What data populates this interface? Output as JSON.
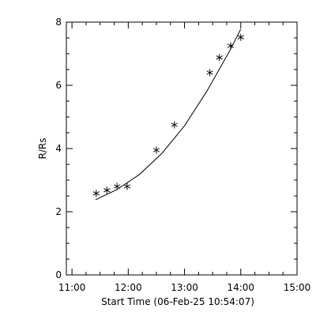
{
  "chart_data": {
    "type": "scatter",
    "xlabel": "Start Time (06-Feb-25 10:54:07)",
    "ylabel": "R/Rs",
    "x_ticks": [
      "11:00",
      "12:00",
      "13:00",
      "14:00",
      "15:00"
    ],
    "x_tick_hours": [
      11,
      12,
      13,
      14,
      15
    ],
    "y_ticks": [
      "0",
      "2",
      "4",
      "6",
      "8"
    ],
    "y_tick_values": [
      0,
      2,
      4,
      6,
      8
    ],
    "xlim_hours": [
      10.9,
      15.0
    ],
    "ylim": [
      0,
      8
    ],
    "grid": false,
    "marker": "asterisk",
    "points": [
      {
        "t": 11.43,
        "r": 2.58
      },
      {
        "t": 11.62,
        "r": 2.68
      },
      {
        "t": 11.8,
        "r": 2.8
      },
      {
        "t": 11.98,
        "r": 2.8
      },
      {
        "t": 12.5,
        "r": 3.95
      },
      {
        "t": 12.82,
        "r": 4.75
      },
      {
        "t": 13.45,
        "r": 6.4
      },
      {
        "t": 13.62,
        "r": 6.88
      },
      {
        "t": 13.82,
        "r": 7.25
      },
      {
        "t": 14.0,
        "r": 7.52
      }
    ],
    "fit_curve": [
      {
        "t": 11.42,
        "r": 2.38
      },
      {
        "t": 11.8,
        "r": 2.7
      },
      {
        "t": 12.2,
        "r": 3.18
      },
      {
        "t": 12.6,
        "r": 3.85
      },
      {
        "t": 13.0,
        "r": 4.72
      },
      {
        "t": 13.4,
        "r": 5.82
      },
      {
        "t": 13.8,
        "r": 7.08
      },
      {
        "t": 14.0,
        "r": 7.78
      }
    ]
  }
}
